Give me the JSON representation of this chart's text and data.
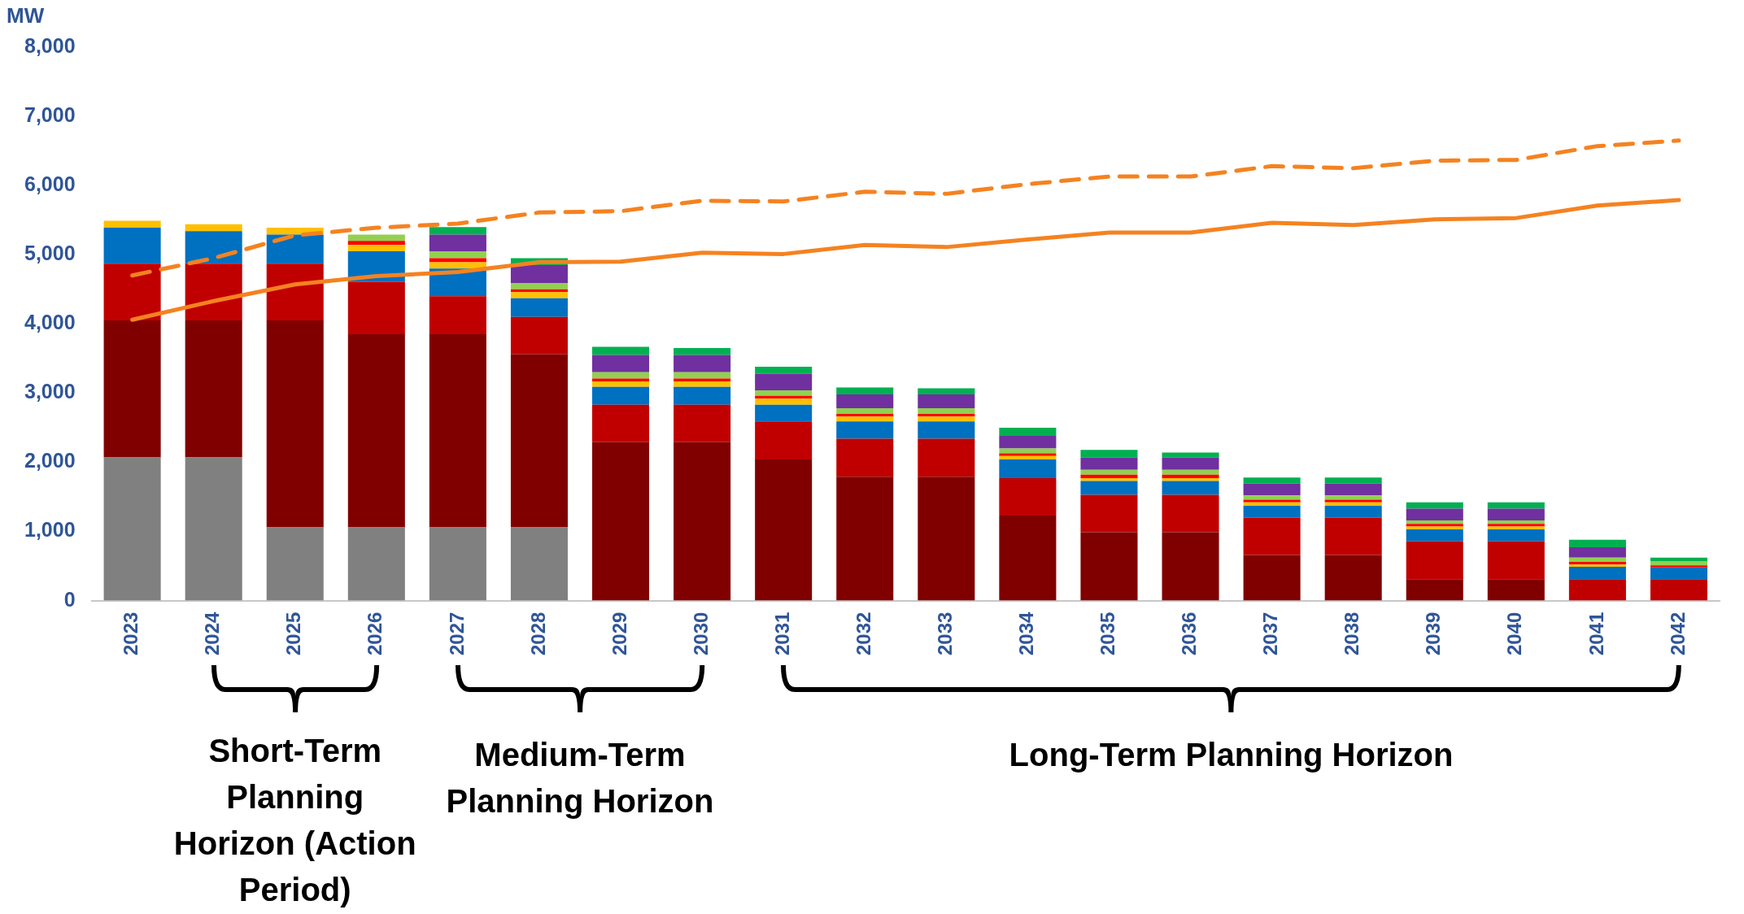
{
  "chart_data": {
    "type": "bar",
    "stacked": true,
    "ylabel": "MW",
    "categories": [
      "2023",
      "2024",
      "2025",
      "2026",
      "2027",
      "2028",
      "2029",
      "2030",
      "2031",
      "2032",
      "2033",
      "2034",
      "2035",
      "2036",
      "2037",
      "2038",
      "2039",
      "2040",
      "2041",
      "2042"
    ],
    "ylim": [
      0,
      8000
    ],
    "yticks": [
      0,
      {
        "value": 1000,
        "label": "1,000"
      },
      {
        "value": 2000,
        "label": "2,000"
      },
      {
        "value": 3000,
        "label": "3,000"
      },
      {
        "value": 4000,
        "label": "4,000"
      },
      {
        "value": 5000,
        "label": "5,000"
      },
      {
        "value": 6000,
        "label": "6,000"
      },
      {
        "value": 7000,
        "label": "7,000"
      },
      {
        "value": 8000,
        "label": "8,000"
      }
    ],
    "grid": false,
    "legend": false,
    "series": [
      {
        "color": "#808080",
        "values": [
          2070,
          2070,
          1060,
          1060,
          1060,
          1060,
          null,
          null,
          null,
          null,
          null,
          null,
          null,
          null,
          null,
          null,
          null,
          null,
          null,
          null
        ]
      },
      {
        "color": "#800000",
        "values": [
          1980,
          1980,
          2990,
          2790,
          2790,
          2500,
          2290,
          2290,
          2040,
          1790,
          1790,
          1230,
          990,
          990,
          660,
          660,
          310,
          310,
          null,
          null
        ]
      },
      {
        "color": "#c00000",
        "values": [
          820,
          820,
          820,
          760,
          550,
          540,
          540,
          540,
          550,
          550,
          550,
          540,
          540,
          540,
          540,
          540,
          550,
          550,
          310,
          310
        ]
      },
      {
        "color": "#0070c0",
        "values": [
          520,
          470,
          420,
          440,
          400,
          270,
          260,
          260,
          240,
          250,
          250,
          270,
          200,
          200,
          170,
          170,
          170,
          170,
          180,
          170
        ]
      },
      {
        "color": "#ffc000",
        "values": [
          100,
          100,
          100,
          90,
          90,
          90,
          80,
          80,
          90,
          70,
          70,
          50,
          40,
          40,
          50,
          50,
          40,
          40,
          30,
          null
        ]
      },
      {
        "color": "#ff0000",
        "values": [
          null,
          null,
          null,
          60,
          60,
          40,
          40,
          40,
          40,
          40,
          40,
          40,
          50,
          50,
          40,
          40,
          40,
          40,
          40,
          30
        ]
      },
      {
        "color": "#92d050",
        "values": [
          null,
          null,
          null,
          90,
          100,
          90,
          90,
          90,
          80,
          80,
          80,
          70,
          70,
          70,
          60,
          60,
          50,
          50,
          60,
          60
        ]
      },
      {
        "color": "#7030a0",
        "values": [
          null,
          null,
          null,
          null,
          240,
          260,
          250,
          250,
          240,
          200,
          200,
          190,
          180,
          180,
          170,
          170,
          170,
          170,
          150,
          null
        ]
      },
      {
        "color": "#00b050",
        "values": [
          null,
          null,
          null,
          null,
          110,
          100,
          120,
          100,
          100,
          100,
          90,
          110,
          110,
          70,
          90,
          90,
          90,
          90,
          110,
          50
        ]
      },
      {
        "type": "line",
        "line_style": "solid",
        "marker": "none",
        "color": "#f58220",
        "values": [
          4060,
          4330,
          4570,
          4690,
          4750,
          4890,
          4900,
          5030,
          5010,
          5140,
          5110,
          5220,
          5320,
          5320,
          5460,
          5430,
          5510,
          5530,
          5710,
          5790
        ]
      },
      {
        "type": "line",
        "line_style": "dashed",
        "marker": "none",
        "color": "#f58220",
        "values": [
          4700,
          4950,
          5280,
          5390,
          5450,
          5610,
          5630,
          5780,
          5770,
          5910,
          5880,
          6020,
          6130,
          6130,
          6280,
          6250,
          6360,
          6370,
          6570,
          6650
        ]
      }
    ],
    "annotations": [
      "Short-Term Planning Horizon (Action Period)",
      "Medium-Term Planning Horizon",
      "Long-Term Planning Horizon"
    ]
  }
}
